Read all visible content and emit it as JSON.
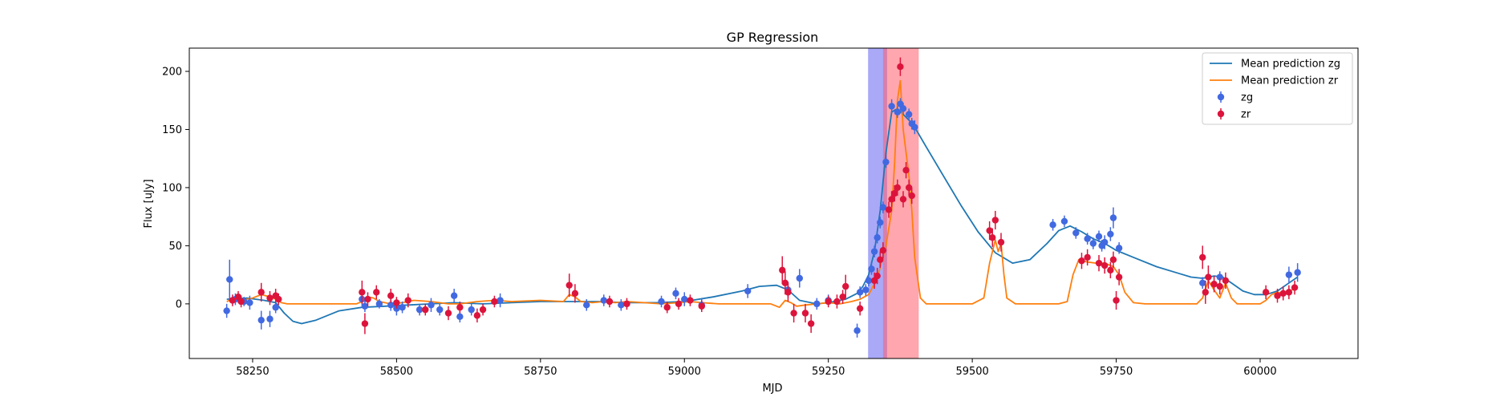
{
  "chart_data": {
    "type": "line",
    "title": "GP Regression",
    "xlabel": "MJD",
    "ylabel": "Flux [uJy]",
    "xlim": [
      58140,
      60170
    ],
    "ylim": [
      -47,
      220
    ],
    "xticks": [
      58250,
      58500,
      58750,
      59000,
      59250,
      59500,
      59750,
      60000
    ],
    "yticks": [
      0,
      50,
      100,
      150,
      200
    ],
    "grid": false,
    "legend_position": "top-right",
    "spans": [
      {
        "series": "zg",
        "x": [
          59319,
          59352
        ],
        "color": "#7b7bf5",
        "opacity": 0.65
      },
      {
        "series": "zr",
        "x": [
          59345,
          59407
        ],
        "color": "#ff5c6c",
        "opacity": 0.55
      }
    ],
    "series": [
      {
        "name": "Mean prediction zg",
        "kind": "line",
        "color": "#1f77b4",
        "x": [
          58205,
          58240,
          58270,
          58290,
          58305,
          58320,
          58335,
          58360,
          58400,
          58440,
          58480,
          58520,
          58560,
          58600,
          58650,
          58700,
          58750,
          58800,
          58850,
          58900,
          58950,
          59000,
          59050,
          59100,
          59130,
          59160,
          59180,
          59200,
          59230,
          59250,
          59280,
          59300,
          59310,
          59320,
          59330,
          59340,
          59350,
          59360,
          59370,
          59380,
          59390,
          59400,
          59420,
          59450,
          59480,
          59510,
          59540,
          59570,
          59600,
          59630,
          59650,
          59670,
          59690,
          59710,
          59730,
          59750,
          59780,
          59820,
          59860,
          59880,
          59900,
          59920,
          59935,
          59950,
          59970,
          59990,
          60010,
          60030,
          60050,
          60065
        ],
        "y": [
          4,
          5,
          3,
          1,
          -8,
          -15,
          -17,
          -14,
          -6,
          -3,
          -2,
          -1,
          0,
          1,
          0,
          1,
          2,
          2,
          2,
          1,
          1,
          2,
          6,
          11,
          15,
          16,
          12,
          3,
          0,
          1,
          4,
          9,
          15,
          25,
          45,
          80,
          130,
          165,
          168,
          163,
          158,
          152,
          135,
          110,
          85,
          62,
          44,
          35,
          38,
          52,
          63,
          67,
          62,
          56,
          52,
          46,
          40,
          32,
          26,
          23,
          22,
          24,
          23,
          18,
          11,
          8,
          8,
          11,
          18,
          23
        ]
      },
      {
        "name": "Mean prediction zr",
        "kind": "line",
        "color": "#ff7f0e",
        "x": [
          58205,
          58215,
          58230,
          58250,
          58265,
          58280,
          58290,
          58300,
          58310,
          58350,
          58400,
          58430,
          58440,
          58450,
          58460,
          58470,
          58490,
          58510,
          58530,
          58560,
          58590,
          58610,
          58640,
          58670,
          58700,
          58750,
          58790,
          58800,
          58810,
          58820,
          58840,
          58860,
          58880,
          58900,
          58930,
          58960,
          58990,
          59010,
          59030,
          59060,
          59100,
          59150,
          59165,
          59175,
          59185,
          59195,
          59210,
          59230,
          59250,
          59270,
          59290,
          59305,
          59320,
          59335,
          59350,
          59360,
          59365,
          59370,
          59375,
          59380,
          59385,
          59390,
          59395,
          59400,
          59410,
          59420,
          59450,
          59500,
          59520,
          59530,
          59540,
          59545,
          59550,
          59555,
          59560,
          59575,
          59600,
          59650,
          59665,
          59675,
          59685,
          59700,
          59715,
          59730,
          59745,
          59755,
          59765,
          59780,
          59800,
          59850,
          59890,
          59900,
          59910,
          59920,
          59930,
          59940,
          59950,
          59960,
          59990,
          60000,
          60010,
          60020,
          60030,
          60040,
          60050,
          60060,
          60065
        ],
        "y": [
          2,
          4,
          3,
          5,
          8,
          6,
          4,
          1,
          0,
          0,
          0,
          0,
          2,
          6,
          5,
          2,
          0,
          1,
          3,
          2,
          0,
          0,
          2,
          3,
          2,
          3,
          2,
          8,
          6,
          2,
          1,
          2,
          1,
          2,
          1,
          0,
          1,
          2,
          1,
          0,
          0,
          0,
          -3,
          3,
          1,
          -2,
          -1,
          0,
          1,
          0,
          2,
          4,
          8,
          22,
          50,
          80,
          120,
          175,
          192,
          150,
          130,
          110,
          80,
          40,
          5,
          0,
          0,
          0,
          5,
          35,
          55,
          45,
          52,
          25,
          5,
          0,
          0,
          0,
          2,
          25,
          38,
          36,
          35,
          35,
          32,
          25,
          10,
          1,
          0,
          0,
          0,
          5,
          20,
          12,
          5,
          18,
          5,
          0,
          0,
          0,
          3,
          8,
          10,
          9,
          11,
          13,
          14
        ]
      },
      {
        "name": "zg",
        "kind": "errorbar",
        "color": "#4169e1",
        "x": [
          58205,
          58210,
          58220,
          58235,
          58245,
          58265,
          58280,
          58290,
          58440,
          58445,
          58470,
          58490,
          58500,
          58510,
          58540,
          58560,
          58575,
          58600,
          58610,
          58630,
          58680,
          58830,
          58860,
          58890,
          58960,
          58985,
          59000,
          59030,
          59110,
          59180,
          59200,
          59230,
          59250,
          59300,
          59305,
          59315,
          59320,
          59325,
          59330,
          59335,
          59340,
          59345,
          59350,
          59360,
          59370,
          59375,
          59380,
          59390,
          59395,
          59400,
          59640,
          59660,
          59680,
          59700,
          59710,
          59720,
          59725,
          59730,
          59740,
          59745,
          59755,
          59900,
          59930,
          60050,
          60065
        ],
        "y": [
          -6,
          21,
          4,
          2,
          1,
          -14,
          -13,
          -3,
          4,
          -2,
          0,
          -1,
          -4,
          -3,
          -5,
          -1,
          -5,
          7,
          -11,
          -5,
          3,
          -1,
          3,
          -1,
          2,
          9,
          4,
          -1,
          11,
          12,
          22,
          0,
          3,
          -23,
          10,
          12,
          20,
          30,
          45,
          57,
          70,
          83,
          122,
          170,
          165,
          172,
          168,
          163,
          155,
          152,
          68,
          71,
          61,
          56,
          52,
          58,
          50,
          53,
          60,
          74,
          48,
          18,
          23,
          25,
          27
        ],
        "err": [
          6,
          17,
          5,
          4,
          6,
          8,
          7,
          5,
          6,
          5,
          4,
          5,
          6,
          5,
          5,
          6,
          5,
          6,
          5,
          5,
          6,
          5,
          5,
          5,
          5,
          5,
          6,
          6,
          6,
          7,
          8,
          5,
          5,
          6,
          5,
          5,
          5,
          5,
          5,
          5,
          5,
          5,
          5,
          6,
          5,
          5,
          5,
          5,
          5,
          6,
          5,
          5,
          5,
          5,
          5,
          5,
          5,
          6,
          6,
          9,
          5,
          5,
          5,
          7,
          8
        ]
      },
      {
        "name": "zr",
        "kind": "errorbar",
        "color": "#dc143c",
        "x": [
          58215,
          58225,
          58230,
          58265,
          58280,
          58290,
          58295,
          58440,
          58445,
          58450,
          58465,
          58490,
          58500,
          58520,
          58550,
          58590,
          58610,
          58640,
          58650,
          58670,
          58800,
          58810,
          58870,
          58900,
          58970,
          58990,
          59010,
          59030,
          59170,
          59175,
          59180,
          59190,
          59210,
          59220,
          59250,
          59265,
          59275,
          59280,
          59305,
          59330,
          59335,
          59340,
          59345,
          59355,
          59360,
          59365,
          59370,
          59375,
          59380,
          59385,
          59390,
          59395,
          59530,
          59535,
          59540,
          59550,
          59690,
          59700,
          59720,
          59730,
          59740,
          59745,
          59750,
          59755,
          59900,
          59905,
          59910,
          59920,
          59930,
          59940,
          60010,
          60030,
          60040,
          60050,
          60060
        ],
        "y": [
          3,
          6,
          2,
          10,
          5,
          7,
          4,
          10,
          -17,
          4,
          10,
          7,
          1,
          3,
          -5,
          -8,
          -3,
          -10,
          -5,
          2,
          16,
          9,
          2,
          0,
          -3,
          0,
          3,
          -2,
          29,
          18,
          10,
          -8,
          -8,
          -17,
          2,
          2,
          6,
          15,
          -4,
          20,
          24,
          38,
          46,
          81,
          90,
          95,
          100,
          204,
          90,
          115,
          100,
          93,
          63,
          57,
          72,
          53,
          37,
          40,
          35,
          33,
          29,
          38,
          3,
          23,
          40,
          10,
          23,
          17,
          15,
          20,
          10,
          7,
          9,
          10,
          14
        ],
        "err": [
          5,
          5,
          5,
          8,
          6,
          6,
          5,
          10,
          9,
          6,
          6,
          6,
          5,
          6,
          5,
          6,
          5,
          6,
          5,
          5,
          10,
          8,
          5,
          5,
          5,
          5,
          5,
          5,
          12,
          10,
          8,
          8,
          8,
          8,
          5,
          6,
          6,
          10,
          6,
          7,
          7,
          7,
          7,
          7,
          7,
          7,
          7,
          8,
          7,
          7,
          7,
          7,
          8,
          8,
          8,
          8,
          7,
          7,
          7,
          7,
          7,
          7,
          8,
          7,
          10,
          10,
          10,
          7,
          7,
          7,
          6,
          6,
          6,
          6,
          6
        ]
      }
    ]
  }
}
